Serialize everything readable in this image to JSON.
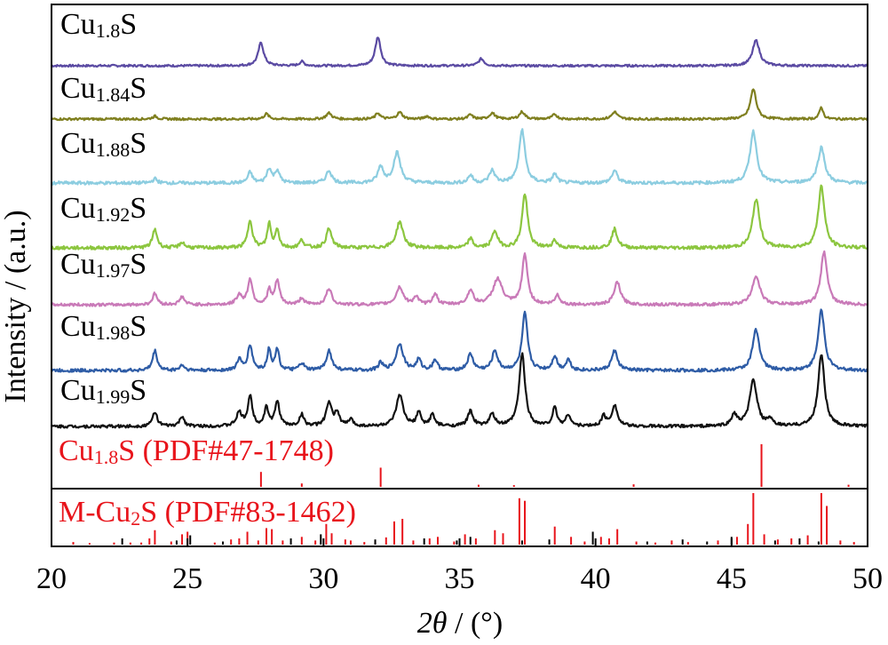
{
  "chart_data": {
    "type": "line",
    "xlabel_italic": "2θ",
    "xlabel_rest": " / (°)",
    "ylabel": "Intensity / (a.u.)",
    "xlim": [
      20,
      50
    ],
    "xticks": [
      20,
      25,
      30,
      35,
      40,
      45,
      50
    ],
    "xtick_labels": [
      "20",
      "25",
      "30",
      "35",
      "40",
      "45",
      "50"
    ],
    "grid": false,
    "series": [
      {
        "name": "Cu1.8S",
        "label_base": "Cu",
        "label_sub": "1.8",
        "label_tail": "S",
        "color": "#5b4ba3",
        "peaks": [
          [
            27.7,
            1.0,
            0.12
          ],
          [
            29.2,
            0.18,
            0.1
          ],
          [
            32.0,
            1.25,
            0.12
          ],
          [
            35.8,
            0.3,
            0.12
          ],
          [
            45.9,
            1.1,
            0.15
          ]
        ]
      },
      {
        "name": "Cu1.84S",
        "label_base": "Cu",
        "label_sub": "1.84",
        "label_tail": "S",
        "color": "#7f7f1f",
        "peaks": [
          [
            23.8,
            0.12,
            0.1
          ],
          [
            27.9,
            0.22,
            0.1
          ],
          [
            30.2,
            0.25,
            0.12
          ],
          [
            32.0,
            0.25,
            0.1
          ],
          [
            32.8,
            0.28,
            0.12
          ],
          [
            33.8,
            0.12,
            0.1
          ],
          [
            35.4,
            0.18,
            0.1
          ],
          [
            36.2,
            0.25,
            0.12
          ],
          [
            37.3,
            0.3,
            0.12
          ],
          [
            38.5,
            0.2,
            0.1
          ],
          [
            40.7,
            0.3,
            0.12
          ],
          [
            45.8,
            1.25,
            0.13
          ],
          [
            48.3,
            0.5,
            0.08
          ]
        ]
      },
      {
        "name": "Cu1.88S",
        "label_base": "Cu",
        "label_sub": "1.88",
        "label_tail": "S",
        "color": "#8ccde0",
        "peaks": [
          [
            23.8,
            0.12,
            0.1
          ],
          [
            27.3,
            0.3,
            0.1
          ],
          [
            28.0,
            0.4,
            0.1
          ],
          [
            28.3,
            0.35,
            0.1
          ],
          [
            30.2,
            0.35,
            0.12
          ],
          [
            32.1,
            0.45,
            0.12
          ],
          [
            32.7,
            0.85,
            0.15
          ],
          [
            35.4,
            0.22,
            0.1
          ],
          [
            36.2,
            0.35,
            0.12
          ],
          [
            37.3,
            1.5,
            0.13
          ],
          [
            38.5,
            0.25,
            0.1
          ],
          [
            40.7,
            0.35,
            0.12
          ],
          [
            45.8,
            1.45,
            0.15
          ],
          [
            48.3,
            1.0,
            0.15
          ]
        ]
      },
      {
        "name": "Cu1.92S",
        "label_base": "Cu",
        "label_sub": "1.92",
        "label_tail": "S",
        "color": "#8cc63f",
        "peaks": [
          [
            23.8,
            0.5,
            0.1
          ],
          [
            24.8,
            0.15,
            0.1
          ],
          [
            27.3,
            0.75,
            0.1
          ],
          [
            28.0,
            0.65,
            0.08
          ],
          [
            28.3,
            0.5,
            0.08
          ],
          [
            29.2,
            0.2,
            0.1
          ],
          [
            30.2,
            0.5,
            0.12
          ],
          [
            32.8,
            0.7,
            0.15
          ],
          [
            35.4,
            0.25,
            0.1
          ],
          [
            36.3,
            0.45,
            0.12
          ],
          [
            37.4,
            1.45,
            0.12
          ],
          [
            38.5,
            0.2,
            0.1
          ],
          [
            40.7,
            0.5,
            0.12
          ],
          [
            45.9,
            1.3,
            0.15
          ],
          [
            48.3,
            1.65,
            0.14
          ]
        ]
      },
      {
        "name": "Cu1.97S",
        "label_base": "Cu",
        "label_sub": "1.97",
        "label_tail": "S",
        "color": "#c97ab8",
        "peaks": [
          [
            23.8,
            0.35,
            0.1
          ],
          [
            24.8,
            0.25,
            0.1
          ],
          [
            26.9,
            0.3,
            0.12
          ],
          [
            27.3,
            0.8,
            0.1
          ],
          [
            28.0,
            0.45,
            0.08
          ],
          [
            28.3,
            0.75,
            0.1
          ],
          [
            29.2,
            0.2,
            0.1
          ],
          [
            30.2,
            0.5,
            0.12
          ],
          [
            32.8,
            0.55,
            0.15
          ],
          [
            33.4,
            0.25,
            0.1
          ],
          [
            34.1,
            0.35,
            0.1
          ],
          [
            35.4,
            0.45,
            0.12
          ],
          [
            36.4,
            0.8,
            0.2
          ],
          [
            37.4,
            1.55,
            0.12
          ],
          [
            38.6,
            0.3,
            0.1
          ],
          [
            40.8,
            0.7,
            0.14
          ],
          [
            45.9,
            0.9,
            0.17
          ],
          [
            48.4,
            1.65,
            0.14
          ]
        ]
      },
      {
        "name": "Cu1.98S",
        "label_base": "Cu",
        "label_sub": "1.98",
        "label_tail": "S",
        "color": "#2e5ca6",
        "peaks": [
          [
            23.8,
            0.55,
            0.1
          ],
          [
            24.8,
            0.15,
            0.1
          ],
          [
            26.9,
            0.3,
            0.1
          ],
          [
            27.3,
            0.7,
            0.1
          ],
          [
            28.0,
            0.6,
            0.08
          ],
          [
            28.3,
            0.6,
            0.08
          ],
          [
            29.2,
            0.2,
            0.1
          ],
          [
            30.2,
            0.55,
            0.12
          ],
          [
            32.1,
            0.2,
            0.1
          ],
          [
            32.8,
            0.75,
            0.15
          ],
          [
            33.5,
            0.3,
            0.1
          ],
          [
            34.1,
            0.3,
            0.1
          ],
          [
            35.4,
            0.45,
            0.12
          ],
          [
            36.3,
            0.55,
            0.12
          ],
          [
            37.4,
            1.6,
            0.12
          ],
          [
            38.5,
            0.4,
            0.1
          ],
          [
            39.0,
            0.3,
            0.1
          ],
          [
            40.7,
            0.55,
            0.13
          ],
          [
            45.9,
            1.15,
            0.15
          ],
          [
            48.3,
            1.7,
            0.14
          ]
        ]
      },
      {
        "name": "Cu1.99S",
        "label_base": "Cu",
        "label_sub": "1.99",
        "label_tail": "S",
        "color": "#111111",
        "peaks": [
          [
            23.8,
            0.45,
            0.1
          ],
          [
            24.8,
            0.3,
            0.1
          ],
          [
            26.9,
            0.4,
            0.12
          ],
          [
            27.3,
            0.9,
            0.1
          ],
          [
            27.9,
            0.6,
            0.08
          ],
          [
            28.3,
            0.75,
            0.1
          ],
          [
            29.2,
            0.35,
            0.1
          ],
          [
            30.2,
            0.7,
            0.12
          ],
          [
            30.5,
            0.4,
            0.1
          ],
          [
            31.0,
            0.2,
            0.1
          ],
          [
            32.8,
            0.95,
            0.15
          ],
          [
            33.5,
            0.4,
            0.1
          ],
          [
            34.0,
            0.35,
            0.1
          ],
          [
            35.4,
            0.45,
            0.12
          ],
          [
            36.2,
            0.35,
            0.12
          ],
          [
            37.3,
            2.2,
            0.13
          ],
          [
            38.5,
            0.55,
            0.1
          ],
          [
            39.0,
            0.35,
            0.1
          ],
          [
            40.3,
            0.3,
            0.1
          ],
          [
            40.7,
            0.65,
            0.12
          ],
          [
            45.1,
            0.35,
            0.12
          ],
          [
            45.8,
            1.4,
            0.16
          ],
          [
            46.4,
            0.2,
            0.1
          ],
          [
            48.3,
            2.2,
            0.14
          ]
        ]
      }
    ],
    "references": [
      {
        "name": "Cu1.8S (PDF#47-1748)",
        "label_base": "Cu",
        "label_sub": "1.8",
        "label_tail": "S (PDF#47-1748)",
        "color": "#e8141b",
        "lines": [
          [
            27.7,
            0.35
          ],
          [
            29.2,
            0.08
          ],
          [
            32.1,
            0.45
          ],
          [
            35.7,
            0.05
          ],
          [
            37.0,
            0.04
          ],
          [
            41.4,
            0.06
          ],
          [
            46.1,
            1.0
          ],
          [
            49.3,
            0.05
          ]
        ]
      },
      {
        "name": "M-Cu2S (PDF#83-1462)",
        "label_base": "M-Cu",
        "label_sub": "2",
        "label_tail": "S (PDF#83-1462)",
        "color": "#e8141b",
        "lines_red": [
          [
            20.8,
            0.05
          ],
          [
            21.4,
            0.03
          ],
          [
            22.3,
            0.04
          ],
          [
            22.9,
            0.04
          ],
          [
            23.3,
            0.04
          ],
          [
            23.6,
            0.12
          ],
          [
            23.8,
            0.28
          ],
          [
            24.4,
            0.06
          ],
          [
            24.8,
            0.2
          ],
          [
            25.0,
            0.25
          ],
          [
            26.0,
            0.04
          ],
          [
            26.6,
            0.1
          ],
          [
            26.9,
            0.12
          ],
          [
            27.2,
            0.25
          ],
          [
            27.6,
            0.08
          ],
          [
            27.9,
            0.32
          ],
          [
            28.1,
            0.3
          ],
          [
            28.5,
            0.08
          ],
          [
            29.2,
            0.15
          ],
          [
            29.7,
            0.08
          ],
          [
            30.1,
            0.4
          ],
          [
            30.3,
            0.22
          ],
          [
            30.8,
            0.1
          ],
          [
            31.0,
            0.08
          ],
          [
            31.5,
            0.05
          ],
          [
            31.9,
            0.06
          ],
          [
            32.3,
            0.14
          ],
          [
            32.6,
            0.45
          ],
          [
            32.9,
            0.5
          ],
          [
            33.3,
            0.08
          ],
          [
            33.9,
            0.12
          ],
          [
            34.2,
            0.15
          ],
          [
            34.8,
            0.06
          ],
          [
            35.2,
            0.2
          ],
          [
            35.6,
            0.12
          ],
          [
            36.3,
            0.28
          ],
          [
            36.6,
            0.22
          ],
          [
            37.2,
            0.9
          ],
          [
            37.4,
            0.85
          ],
          [
            38.5,
            0.35
          ],
          [
            39.1,
            0.15
          ],
          [
            39.6,
            0.06
          ],
          [
            40.2,
            0.15
          ],
          [
            40.5,
            0.12
          ],
          [
            40.8,
            0.3
          ],
          [
            41.5,
            0.06
          ],
          [
            42.2,
            0.04
          ],
          [
            42.8,
            0.08
          ],
          [
            43.4,
            0.05
          ],
          [
            44.5,
            0.08
          ],
          [
            45.2,
            0.15
          ],
          [
            45.6,
            0.4
          ],
          [
            45.8,
            1.0
          ],
          [
            46.2,
            0.2
          ],
          [
            46.7,
            0.1
          ],
          [
            47.2,
            0.12
          ],
          [
            47.8,
            0.18
          ],
          [
            48.3,
            1.0
          ],
          [
            48.5,
            0.75
          ],
          [
            49.0,
            0.08
          ],
          [
            49.5,
            0.05
          ]
        ],
        "lines_black": [
          [
            22.6,
            0.12
          ],
          [
            24.6,
            0.08
          ],
          [
            25.1,
            0.18
          ],
          [
            26.3,
            0.06
          ],
          [
            28.8,
            0.12
          ],
          [
            29.9,
            0.2
          ],
          [
            31.9,
            0.1
          ],
          [
            33.7,
            0.12
          ],
          [
            34.9,
            0.08
          ],
          [
            35.4,
            0.15
          ],
          [
            37.3,
            0.08
          ],
          [
            38.3,
            0.1
          ],
          [
            39.9,
            0.25
          ],
          [
            41.9,
            0.06
          ],
          [
            43.2,
            0.1
          ],
          [
            44.1,
            0.06
          ],
          [
            45.0,
            0.15
          ],
          [
            46.6,
            0.08
          ],
          [
            47.5,
            0.12
          ],
          [
            48.2,
            0.06
          ]
        ]
      }
    ]
  }
}
